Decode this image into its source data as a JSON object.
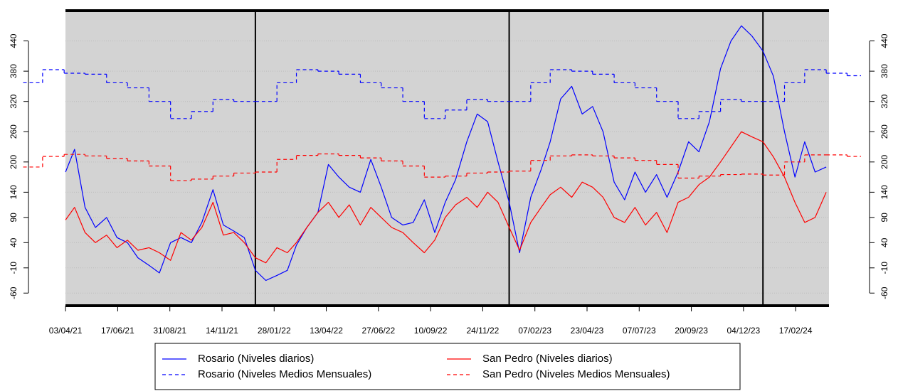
{
  "chart_data": {
    "type": "line",
    "xlim": [
      "24/02/21",
      "21/05/24"
    ],
    "ylim": [
      -85,
      500
    ],
    "yticks": [
      -60,
      -10,
      40,
      90,
      140,
      200,
      260,
      320,
      380,
      440
    ],
    "xticks": [
      "03/04/21",
      "17/06/21",
      "31/08/21",
      "14/11/21",
      "28/01/22",
      "13/04/22",
      "27/06/22",
      "10/09/22",
      "24/11/22",
      "07/02/23",
      "23/04/23",
      "07/07/23",
      "20/09/23",
      "04/12/23",
      "17/02/24"
    ],
    "year_lines": [
      "01/01/22",
      "01/01/23",
      "01/01/24"
    ],
    "series": [
      {
        "name": "Rosario (Niveles diarios)",
        "color": "#0000ff",
        "style": "solid",
        "x": [
          "03/04/21",
          "16/04/21",
          "01/05/21",
          "16/05/21",
          "01/06/21",
          "16/06/21",
          "01/07/21",
          "16/07/21",
          "01/08/21",
          "16/08/21",
          "01/09/21",
          "16/09/21",
          "01/10/21",
          "16/10/21",
          "01/11/21",
          "16/11/21",
          "01/12/21",
          "16/12/21",
          "01/01/22",
          "16/01/22",
          "01/02/22",
          "16/02/22",
          "01/03/22",
          "16/03/22",
          "01/04/22",
          "16/04/22",
          "01/05/22",
          "16/05/22",
          "01/06/22",
          "16/06/22",
          "01/07/22",
          "16/07/22",
          "01/08/22",
          "16/08/22",
          "01/09/22",
          "16/09/22",
          "01/10/22",
          "16/10/22",
          "01/11/22",
          "16/11/22",
          "01/12/22",
          "16/12/22",
          "01/01/23",
          "16/01/23",
          "01/02/23",
          "16/02/23",
          "01/03/23",
          "16/03/23",
          "01/04/23",
          "16/04/23",
          "01/05/23",
          "16/05/23",
          "01/06/23",
          "16/06/23",
          "01/07/23",
          "16/07/23",
          "01/08/23",
          "16/08/23",
          "01/09/23",
          "16/09/23",
          "01/10/23",
          "16/10/23",
          "01/11/23",
          "16/11/23",
          "01/12/23",
          "16/12/23",
          "01/01/24",
          "16/01/24",
          "01/02/24",
          "16/02/24",
          "01/03/24",
          "16/03/24",
          "01/04/24"
        ],
        "values": [
          180,
          225,
          110,
          70,
          90,
          50,
          40,
          10,
          -5,
          -20,
          40,
          50,
          40,
          80,
          145,
          75,
          63,
          50,
          -15,
          -35,
          -25,
          -15,
          35,
          70,
          100,
          195,
          170,
          150,
          140,
          205,
          150,
          90,
          75,
          80,
          125,
          60,
          120,
          165,
          240,
          295,
          280,
          200,
          120,
          20,
          130,
          185,
          240,
          325,
          350,
          295,
          310,
          260,
          160,
          125,
          180,
          140,
          175,
          130,
          180,
          240,
          220,
          280,
          385,
          440,
          470,
          450,
          420,
          370,
          260,
          170,
          240,
          180,
          190
        ]
      },
      {
        "name": "Rosario (Niveles Medios Mensuales)",
        "color": "#0000ff",
        "style": "dashed",
        "step": true,
        "x": [
          "01/02/21",
          "01/03/21",
          "01/04/21",
          "01/05/21",
          "01/06/21",
          "01/07/21",
          "01/08/21",
          "01/09/21",
          "01/10/21",
          "01/11/21",
          "01/12/21",
          "01/01/22",
          "01/02/22",
          "01/03/22",
          "01/04/22",
          "01/05/22",
          "01/06/22",
          "01/07/22",
          "01/08/22",
          "01/09/22",
          "01/10/22",
          "01/11/22",
          "01/12/22",
          "01/01/23",
          "01/02/23",
          "01/03/23",
          "01/04/23",
          "01/05/23",
          "01/06/23",
          "01/07/23",
          "01/08/23",
          "01/09/23",
          "01/10/23",
          "01/11/23",
          "01/12/23",
          "01/01/24",
          "01/02/24",
          "01/03/24",
          "01/04/24",
          "01/05/24"
        ],
        "values": [
          357,
          383,
          376,
          374,
          357,
          347,
          320,
          286,
          300,
          324,
          320,
          320,
          357,
          383,
          380,
          374,
          357,
          347,
          320,
          286,
          303,
          324,
          320,
          320,
          357,
          383,
          380,
          374,
          357,
          347,
          320,
          286,
          300,
          324,
          320,
          320,
          357,
          383,
          376,
          371
        ]
      },
      {
        "name": "San Pedro (Niveles diarios)",
        "color": "#ff0000",
        "style": "solid",
        "x": [
          "03/04/21",
          "16/04/21",
          "01/05/21",
          "16/05/21",
          "01/06/21",
          "16/06/21",
          "01/07/21",
          "16/07/21",
          "01/08/21",
          "16/08/21",
          "01/09/21",
          "16/09/21",
          "01/10/21",
          "16/10/21",
          "01/11/21",
          "16/11/21",
          "01/12/21",
          "16/12/21",
          "01/01/22",
          "16/01/22",
          "01/02/22",
          "16/02/22",
          "01/03/22",
          "16/03/22",
          "01/04/22",
          "16/04/22",
          "01/05/22",
          "16/05/22",
          "01/06/22",
          "16/06/22",
          "01/07/22",
          "16/07/22",
          "01/08/22",
          "16/08/22",
          "01/09/22",
          "16/09/22",
          "01/10/22",
          "16/10/22",
          "01/11/22",
          "16/11/22",
          "01/12/22",
          "16/12/22",
          "01/01/23",
          "16/01/23",
          "01/02/23",
          "16/02/23",
          "01/03/23",
          "16/03/23",
          "01/04/23",
          "16/04/23",
          "01/05/23",
          "16/05/23",
          "01/06/23",
          "16/06/23",
          "01/07/23",
          "16/07/23",
          "01/08/23",
          "16/08/23",
          "01/09/23",
          "16/09/23",
          "01/10/23",
          "16/10/23",
          "01/11/23",
          "16/11/23",
          "01/12/23",
          "16/12/23",
          "01/01/24",
          "16/01/24",
          "01/02/24",
          "16/02/24",
          "01/03/24",
          "16/03/24",
          "01/04/24"
        ],
        "values": [
          85,
          110,
          60,
          40,
          55,
          30,
          45,
          25,
          30,
          20,
          5,
          60,
          45,
          70,
          120,
          55,
          60,
          40,
          10,
          0,
          30,
          20,
          40,
          70,
          100,
          120,
          90,
          115,
          75,
          110,
          90,
          70,
          60,
          40,
          20,
          45,
          90,
          115,
          130,
          110,
          140,
          120,
          70,
          25,
          80,
          110,
          135,
          150,
          130,
          160,
          150,
          130,
          90,
          80,
          110,
          75,
          100,
          60,
          120,
          130,
          155,
          170,
          200,
          230,
          260,
          250,
          240,
          210,
          170,
          120,
          80,
          90,
          140
        ]
      },
      {
        "name": "San Pedro (Niveles Medios Mensuales)",
        "color": "#ff0000",
        "style": "dashed",
        "step": true,
        "x": [
          "01/02/21",
          "01/03/21",
          "01/04/21",
          "01/05/21",
          "01/06/21",
          "01/07/21",
          "01/08/21",
          "01/09/21",
          "01/10/21",
          "01/11/21",
          "01/12/21",
          "01/01/22",
          "01/02/22",
          "01/03/22",
          "01/04/22",
          "01/05/22",
          "01/06/22",
          "01/07/22",
          "01/08/22",
          "01/09/22",
          "01/10/22",
          "01/11/22",
          "01/12/22",
          "01/01/23",
          "01/02/23",
          "01/03/23",
          "01/04/23",
          "01/05/23",
          "01/06/23",
          "01/07/23",
          "01/08/23",
          "01/09/23",
          "01/10/23",
          "01/11/23",
          "01/12/23",
          "01/01/24",
          "01/02/24",
          "01/03/24",
          "01/04/24",
          "01/05/24"
        ],
        "values": [
          190,
          211,
          215,
          212,
          207,
          202,
          192,
          163,
          166,
          172,
          178,
          180,
          205,
          213,
          216,
          213,
          208,
          202,
          192,
          170,
          172,
          178,
          180,
          182,
          203,
          212,
          214,
          212,
          208,
          203,
          195,
          168,
          172,
          175,
          176,
          174,
          200,
          214,
          214,
          211
        ]
      }
    ]
  }
}
